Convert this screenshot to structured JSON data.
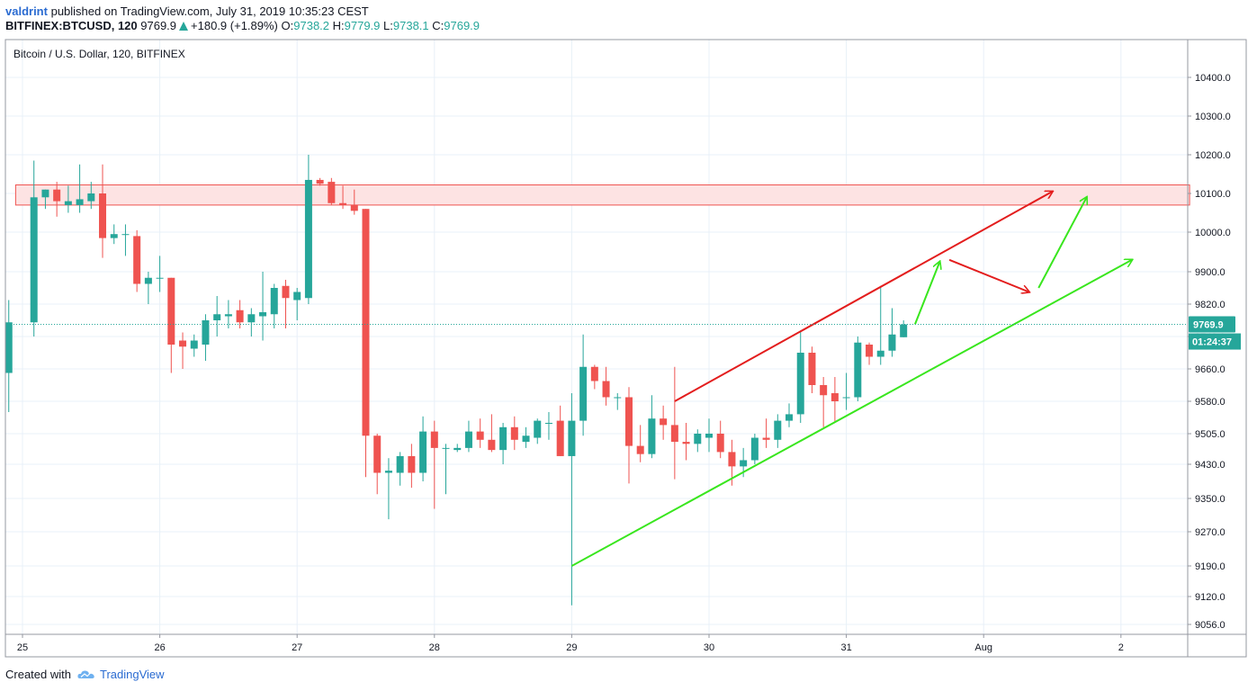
{
  "header": {
    "user": "valdrint",
    "published_text": "published on TradingView.com, July 31, 2019 10:35:23 CEST",
    "symbol": "BITFINEX:BTCUSD, 120",
    "last": "9769.9",
    "change": "+180.9 (+1.89%)",
    "o_label": "O:",
    "o_value": "9738.2",
    "h_label": "H:",
    "h_value": "9779.9",
    "l_label": "L:",
    "l_value": "9738.1",
    "c_label": "C:",
    "c_value": "9769.9"
  },
  "chart_title": "Bitcoin / U.S. Dollar, 120, BITFINEX",
  "footer": {
    "created_with": "Created with",
    "brand": "TradingView"
  },
  "colors": {
    "bull": "#26a69a",
    "bear": "#ef5350",
    "resistance_fill": "#fde3e3",
    "resistance_line": "#ef5350",
    "red_arrow": "#e31d1d",
    "green_arrow": "#39e61e",
    "grid": "#e8f0f8",
    "last_price_tag": "#26a69a"
  },
  "chart_data": {
    "type": "candlestick",
    "interval_minutes": 120,
    "x_ticks": [
      {
        "label": "25",
        "t": 0
      },
      {
        "label": "26",
        "t": 1
      },
      {
        "label": "27",
        "t": 2
      },
      {
        "label": "28",
        "t": 3
      },
      {
        "label": "29",
        "t": 4
      },
      {
        "label": "30",
        "t": 5
      },
      {
        "label": "31",
        "t": 6
      },
      {
        "label": "Aug",
        "t": 7
      },
      {
        "label": "2",
        "t": 8
      }
    ],
    "y_ticks": [
      "10400.0",
      "10300.0",
      "10200.0",
      "10100.0",
      "10000.0",
      "9900.0",
      "9820.0",
      "9740.0",
      "9660.0",
      "9580.0",
      "9505.0",
      "9430.0",
      "9350.0",
      "9270.0",
      "9190.0",
      "9120.0",
      "9056.0"
    ],
    "y_range": [
      9040,
      10480
    ],
    "last_price": "9769.9",
    "countdown": "01:24:37",
    "resistance_zone": [
      10070,
      10122
    ],
    "candles": [
      {
        "t": -0.1,
        "o": 9650,
        "h": 9830,
        "l": 9555,
        "c": 9775
      },
      {
        "t": 0.0833,
        "o": 9775,
        "h": 10185,
        "l": 9740,
        "c": 10090
      },
      {
        "t": 0.1667,
        "o": 10090,
        "h": 10110,
        "l": 10060,
        "c": 10110
      },
      {
        "t": 0.25,
        "o": 10110,
        "h": 10130,
        "l": 10040,
        "c": 10080
      },
      {
        "t": 0.3333,
        "o": 10070,
        "h": 10120,
        "l": 10050,
        "c": 10080
      },
      {
        "t": 0.4167,
        "o": 10070,
        "h": 10175,
        "l": 10050,
        "c": 10085
      },
      {
        "t": 0.5,
        "o": 10080,
        "h": 10130,
        "l": 10060,
        "c": 10100
      },
      {
        "t": 0.5833,
        "o": 10100,
        "h": 10175,
        "l": 9935,
        "c": 9985
      },
      {
        "t": 0.6667,
        "o": 9985,
        "h": 10020,
        "l": 9970,
        "c": 9995
      },
      {
        "t": 0.75,
        "o": 9995,
        "h": 10020,
        "l": 9940,
        "c": 9995
      },
      {
        "t": 0.8333,
        "o": 9990,
        "h": 10005,
        "l": 9850,
        "c": 9870
      },
      {
        "t": 0.9167,
        "o": 9870,
        "h": 9900,
        "l": 9820,
        "c": 9885
      },
      {
        "t": 1.0,
        "o": 9885,
        "h": 9940,
        "l": 9850,
        "c": 9885
      },
      {
        "t": 1.0833,
        "o": 9885,
        "h": 9885,
        "l": 9650,
        "c": 9720
      },
      {
        "t": 1.1667,
        "o": 9730,
        "h": 9750,
        "l": 9660,
        "c": 9715
      },
      {
        "t": 1.25,
        "o": 9710,
        "h": 9745,
        "l": 9690,
        "c": 9730
      },
      {
        "t": 1.3333,
        "o": 9720,
        "h": 9795,
        "l": 9680,
        "c": 9780
      },
      {
        "t": 1.4167,
        "o": 9780,
        "h": 9840,
        "l": 9740,
        "c": 9795
      },
      {
        "t": 1.5,
        "o": 9790,
        "h": 9830,
        "l": 9760,
        "c": 9795
      },
      {
        "t": 1.5833,
        "o": 9805,
        "h": 9830,
        "l": 9760,
        "c": 9775
      },
      {
        "t": 1.6667,
        "o": 9775,
        "h": 9810,
        "l": 9740,
        "c": 9795
      },
      {
        "t": 1.75,
        "o": 9790,
        "h": 9900,
        "l": 9730,
        "c": 9800
      },
      {
        "t": 1.8333,
        "o": 9795,
        "h": 9870,
        "l": 9760,
        "c": 9860
      },
      {
        "t": 1.9167,
        "o": 9865,
        "h": 9880,
        "l": 9760,
        "c": 9835
      },
      {
        "t": 2.0,
        "o": 9830,
        "h": 9860,
        "l": 9780,
        "c": 9850
      },
      {
        "t": 2.0833,
        "o": 9835,
        "h": 10200,
        "l": 9820,
        "c": 10135
      },
      {
        "t": 2.1667,
        "o": 10135,
        "h": 10140,
        "l": 10120,
        "c": 10125
      },
      {
        "t": 2.25,
        "o": 10130,
        "h": 10140,
        "l": 10070,
        "c": 10075
      },
      {
        "t": 2.3333,
        "o": 10075,
        "h": 10120,
        "l": 10060,
        "c": 10070
      },
      {
        "t": 2.4167,
        "o": 10070,
        "h": 10110,
        "l": 10045,
        "c": 10055
      },
      {
        "t": 2.5,
        "o": 10060,
        "h": 10060,
        "l": 9400,
        "c": 9500
      },
      {
        "t": 2.5833,
        "o": 9500,
        "h": 9505,
        "l": 9360,
        "c": 9410
      },
      {
        "t": 2.6667,
        "o": 9410,
        "h": 9445,
        "l": 9300,
        "c": 9415
      },
      {
        "t": 2.75,
        "o": 9410,
        "h": 9460,
        "l": 9380,
        "c": 9450
      },
      {
        "t": 2.8333,
        "o": 9450,
        "h": 9480,
        "l": 9375,
        "c": 9410
      },
      {
        "t": 2.9167,
        "o": 9410,
        "h": 9545,
        "l": 9390,
        "c": 9510
      },
      {
        "t": 3.0,
        "o": 9510,
        "h": 9535,
        "l": 9325,
        "c": 9470
      },
      {
        "t": 3.0833,
        "o": 9470,
        "h": 9480,
        "l": 9360,
        "c": 9470
      },
      {
        "t": 3.1667,
        "o": 9465,
        "h": 9480,
        "l": 9460,
        "c": 9470
      },
      {
        "t": 3.25,
        "o": 9470,
        "h": 9535,
        "l": 9460,
        "c": 9510
      },
      {
        "t": 3.3333,
        "o": 9510,
        "h": 9540,
        "l": 9470,
        "c": 9490
      },
      {
        "t": 3.4167,
        "o": 9490,
        "h": 9550,
        "l": 9460,
        "c": 9465
      },
      {
        "t": 3.5,
        "o": 9465,
        "h": 9530,
        "l": 9430,
        "c": 9520
      },
      {
        "t": 3.5833,
        "o": 9520,
        "h": 9545,
        "l": 9465,
        "c": 9490
      },
      {
        "t": 3.6667,
        "o": 9485,
        "h": 9520,
        "l": 9470,
        "c": 9500
      },
      {
        "t": 3.75,
        "o": 9495,
        "h": 9540,
        "l": 9480,
        "c": 9535
      },
      {
        "t": 3.8333,
        "o": 9530,
        "h": 9555,
        "l": 9490,
        "c": 9530
      },
      {
        "t": 3.9167,
        "o": 9535,
        "h": 9570,
        "l": 9450,
        "c": 9450
      },
      {
        "t": 4.0,
        "o": 9450,
        "h": 9600,
        "l": 9100,
        "c": 9535
      },
      {
        "t": 4.0833,
        "o": 9535,
        "h": 9745,
        "l": 9500,
        "c": 9665
      },
      {
        "t": 4.1667,
        "o": 9665,
        "h": 9670,
        "l": 9610,
        "c": 9630
      },
      {
        "t": 4.25,
        "o": 9630,
        "h": 9665,
        "l": 9570,
        "c": 9590
      },
      {
        "t": 4.3333,
        "o": 9590,
        "h": 9600,
        "l": 9560,
        "c": 9590
      },
      {
        "t": 4.4167,
        "o": 9590,
        "h": 9615,
        "l": 9385,
        "c": 9475
      },
      {
        "t": 4.5,
        "o": 9475,
        "h": 9525,
        "l": 9435,
        "c": 9455
      },
      {
        "t": 4.5833,
        "o": 9455,
        "h": 9595,
        "l": 9445,
        "c": 9540
      },
      {
        "t": 4.6667,
        "o": 9540,
        "h": 9570,
        "l": 9490,
        "c": 9525
      },
      {
        "t": 4.75,
        "o": 9525,
        "h": 9665,
        "l": 9395,
        "c": 9485
      },
      {
        "t": 4.8333,
        "o": 9485,
        "h": 9530,
        "l": 9440,
        "c": 9480
      },
      {
        "t": 4.9167,
        "o": 9480,
        "h": 9515,
        "l": 9460,
        "c": 9505
      },
      {
        "t": 5.0,
        "o": 9495,
        "h": 9540,
        "l": 9460,
        "c": 9505
      },
      {
        "t": 5.0833,
        "o": 9505,
        "h": 9535,
        "l": 9445,
        "c": 9460
      },
      {
        "t": 5.1667,
        "o": 9460,
        "h": 9490,
        "l": 9380,
        "c": 9425
      },
      {
        "t": 5.25,
        "o": 9425,
        "h": 9470,
        "l": 9400,
        "c": 9440
      },
      {
        "t": 5.3333,
        "o": 9440,
        "h": 9505,
        "l": 9430,
        "c": 9495
      },
      {
        "t": 5.4167,
        "o": 9495,
        "h": 9540,
        "l": 9470,
        "c": 9490
      },
      {
        "t": 5.5,
        "o": 9490,
        "h": 9550,
        "l": 9470,
        "c": 9535
      },
      {
        "t": 5.5833,
        "o": 9535,
        "h": 9575,
        "l": 9520,
        "c": 9550
      },
      {
        "t": 5.6667,
        "o": 9550,
        "h": 9755,
        "l": 9530,
        "c": 9700
      },
      {
        "t": 5.75,
        "o": 9700,
        "h": 9715,
        "l": 9600,
        "c": 9620
      },
      {
        "t": 5.8333,
        "o": 9620,
        "h": 9640,
        "l": 9520,
        "c": 9595
      },
      {
        "t": 5.9167,
        "o": 9600,
        "h": 9640,
        "l": 9530,
        "c": 9580
      },
      {
        "t": 6.0,
        "o": 9590,
        "h": 9650,
        "l": 9560,
        "c": 9590
      },
      {
        "t": 6.0833,
        "o": 9590,
        "h": 9740,
        "l": 9580,
        "c": 9725
      },
      {
        "t": 6.1667,
        "o": 9720,
        "h": 9725,
        "l": 9670,
        "c": 9690
      },
      {
        "t": 6.25,
        "o": 9690,
        "h": 9865,
        "l": 9670,
        "c": 9705
      },
      {
        "t": 6.3333,
        "o": 9705,
        "h": 9810,
        "l": 9690,
        "c": 9745
      },
      {
        "t": 6.4167,
        "o": 9738.2,
        "h": 9779.9,
        "l": 9738.1,
        "c": 9769.9
      }
    ],
    "annotations": {
      "resistance_box": {
        "price_low": 10070,
        "price_high": 10122,
        "t_start": -0.05,
        "t_end": 8.5
      },
      "red_channel_line": {
        "from": {
          "t": 4.75,
          "p": 9580
        },
        "to": {
          "t": 7.5,
          "p": 10105
        }
      },
      "green_support_line": {
        "from": {
          "t": 4.0,
          "p": 9190
        },
        "to": {
          "t": 8.08,
          "p": 9930
        }
      },
      "red_forecast": [
        {
          "t": 6.75,
          "p": 9930
        },
        {
          "t": 7.33,
          "p": 9850
        }
      ],
      "green_forecasts": [
        {
          "from": {
            "t": 6.5,
            "p": 9770
          },
          "to": {
            "t": 6.68,
            "p": 9925
          }
        },
        {
          "from": {
            "t": 7.4,
            "p": 9860
          },
          "to": {
            "t": 7.75,
            "p": 10090
          }
        }
      ]
    }
  }
}
